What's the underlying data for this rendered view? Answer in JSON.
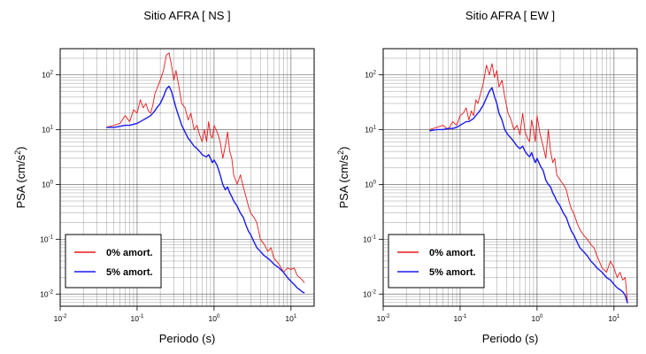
{
  "chart_data": [
    {
      "type": "line",
      "title": "Sitio AFRA [ NS ]",
      "xlabel": "Periodo (s)",
      "ylabel_base": "PSA (cm/s",
      "ylabel_exp": "2",
      "ylabel_close": ")",
      "x_scale": "log",
      "y_scale": "log",
      "xlim": [
        0.01,
        20
      ],
      "ylim": [
        0.006,
        300
      ],
      "x_ticks": [
        {
          "value": 0.01,
          "base": "10",
          "exp": "-2"
        },
        {
          "value": 0.1,
          "base": "10",
          "exp": "-1"
        },
        {
          "value": 1,
          "base": "10",
          "exp": "0"
        },
        {
          "value": 10,
          "base": "10",
          "exp": "1"
        }
      ],
      "y_ticks": [
        {
          "value": 0.01,
          "base": "10",
          "exp": "-2"
        },
        {
          "value": 0.1,
          "base": "10",
          "exp": "-1"
        },
        {
          "value": 1,
          "base": "10",
          "exp": "0"
        },
        {
          "value": 10,
          "base": "10",
          "exp": "1"
        },
        {
          "value": 100,
          "base": "10",
          "exp": "2"
        }
      ],
      "grid": true,
      "legend_position": "bottom-left",
      "series": [
        {
          "name": "0% amort.",
          "color": "#e8191a",
          "x": [
            0.04,
            0.05,
            0.06,
            0.07,
            0.08,
            0.09,
            0.1,
            0.11,
            0.12,
            0.13,
            0.14,
            0.15,
            0.16,
            0.17,
            0.18,
            0.2,
            0.22,
            0.24,
            0.26,
            0.28,
            0.3,
            0.32,
            0.35,
            0.38,
            0.42,
            0.46,
            0.5,
            0.55,
            0.6,
            0.65,
            0.7,
            0.75,
            0.8,
            0.85,
            0.9,
            0.95,
            1.0,
            1.1,
            1.2,
            1.3,
            1.4,
            1.5,
            1.6,
            1.7,
            1.8,
            2.0,
            2.2,
            2.4,
            2.6,
            2.8,
            3.0,
            3.3,
            3.6,
            4.0,
            4.5,
            5.0,
            5.5,
            6.0,
            7.0,
            8.0,
            9.0,
            10,
            11,
            12,
            13,
            14,
            15
          ],
          "y": [
            11,
            12,
            13,
            18,
            14,
            23,
            20,
            35,
            25,
            30,
            22,
            20,
            28,
            45,
            55,
            80,
            120,
            230,
            250,
            150,
            80,
            120,
            60,
            30,
            25,
            15,
            20,
            10,
            12,
            8,
            6,
            10,
            6,
            14,
            8,
            7,
            12,
            9,
            6,
            3,
            5,
            9,
            4,
            3,
            1.5,
            1.0,
            1.5,
            0.9,
            0.6,
            0.4,
            0.3,
            0.25,
            0.2,
            0.1,
            0.08,
            0.06,
            0.07,
            0.045,
            0.035,
            0.025,
            0.03,
            0.028,
            0.03,
            0.022,
            0.02,
            0.018,
            0.016
          ]
        },
        {
          "name": "5% amort.",
          "color": "#1a1af0",
          "x": [
            0.04,
            0.05,
            0.06,
            0.07,
            0.08,
            0.09,
            0.1,
            0.11,
            0.12,
            0.13,
            0.14,
            0.15,
            0.16,
            0.17,
            0.18,
            0.2,
            0.22,
            0.24,
            0.26,
            0.28,
            0.3,
            0.32,
            0.35,
            0.38,
            0.42,
            0.46,
            0.5,
            0.55,
            0.6,
            0.65,
            0.7,
            0.75,
            0.8,
            0.85,
            0.9,
            0.95,
            1.0,
            1.1,
            1.2,
            1.3,
            1.4,
            1.5,
            1.6,
            1.7,
            1.8,
            2.0,
            2.2,
            2.4,
            2.6,
            2.8,
            3.0,
            3.3,
            3.6,
            4.0,
            4.5,
            5.0,
            5.5,
            6.0,
            7.0,
            8.0,
            9.0,
            10,
            11,
            12,
            13,
            14,
            15
          ],
          "y": [
            11,
            11,
            11.5,
            12,
            12,
            12.5,
            13,
            14,
            15,
            16,
            17,
            18,
            20,
            22,
            25,
            30,
            40,
            55,
            62,
            50,
            35,
            25,
            17,
            12,
            9,
            7,
            6,
            5,
            4.5,
            4,
            3.5,
            3.3,
            3.2,
            3.5,
            3.0,
            2.5,
            2.8,
            2.2,
            1.5,
            1.0,
            0.8,
            0.9,
            0.7,
            0.6,
            0.5,
            0.4,
            0.3,
            0.25,
            0.18,
            0.14,
            0.12,
            0.09,
            0.07,
            0.06,
            0.05,
            0.045,
            0.04,
            0.035,
            0.03,
            0.025,
            0.02,
            0.017,
            0.015,
            0.013,
            0.012,
            0.011,
            0.0105
          ]
        }
      ]
    },
    {
      "type": "line",
      "title": "Sitio AFRA [ EW ]",
      "xlabel": "Periodo (s)",
      "ylabel_base": "PSA (cm/s",
      "ylabel_exp": "2",
      "ylabel_close": ")",
      "x_scale": "log",
      "y_scale": "log",
      "xlim": [
        0.01,
        20
      ],
      "ylim": [
        0.006,
        300
      ],
      "x_ticks": [
        {
          "value": 0.01,
          "base": "10",
          "exp": "-2"
        },
        {
          "value": 0.1,
          "base": "10",
          "exp": "-1"
        },
        {
          "value": 1,
          "base": "10",
          "exp": "0"
        },
        {
          "value": 10,
          "base": "10",
          "exp": "1"
        }
      ],
      "y_ticks": [
        {
          "value": 0.01,
          "base": "10",
          "exp": "-2"
        },
        {
          "value": 0.1,
          "base": "10",
          "exp": "-1"
        },
        {
          "value": 1,
          "base": "10",
          "exp": "0"
        },
        {
          "value": 10,
          "base": "10",
          "exp": "1"
        },
        {
          "value": 100,
          "base": "10",
          "exp": "2"
        }
      ],
      "grid": true,
      "legend_position": "bottom-left",
      "series": [
        {
          "name": "0% amort.",
          "color": "#e8191a",
          "x": [
            0.04,
            0.05,
            0.06,
            0.07,
            0.08,
            0.09,
            0.1,
            0.11,
            0.12,
            0.13,
            0.14,
            0.15,
            0.16,
            0.17,
            0.18,
            0.2,
            0.22,
            0.24,
            0.26,
            0.28,
            0.3,
            0.32,
            0.35,
            0.38,
            0.42,
            0.46,
            0.5,
            0.55,
            0.6,
            0.65,
            0.7,
            0.75,
            0.8,
            0.85,
            0.9,
            0.95,
            1.0,
            1.1,
            1.2,
            1.3,
            1.4,
            1.5,
            1.6,
            1.7,
            1.8,
            2.0,
            2.2,
            2.4,
            2.6,
            2.8,
            3.0,
            3.3,
            3.6,
            4.0,
            4.5,
            5.0,
            5.5,
            6.0,
            7.0,
            8.0,
            9.0,
            10,
            11,
            12,
            13,
            14,
            15
          ],
          "y": [
            10,
            11,
            12,
            10,
            14,
            12,
            18,
            20,
            25,
            15,
            22,
            18,
            35,
            30,
            40,
            70,
            150,
            100,
            160,
            90,
            120,
            60,
            80,
            40,
            20,
            15,
            10,
            12,
            8,
            20,
            9,
            7,
            6,
            15,
            10,
            6,
            18,
            8,
            5,
            3,
            10,
            4,
            2.5,
            3,
            1.5,
            1.2,
            1.0,
            0.8,
            0.5,
            0.35,
            0.3,
            0.2,
            0.15,
            0.12,
            0.1,
            0.08,
            0.07,
            0.05,
            0.03,
            0.025,
            0.04,
            0.03,
            0.02,
            0.025,
            0.018,
            0.02,
            0.007
          ]
        },
        {
          "name": "5% amort.",
          "color": "#1a1af0",
          "x": [
            0.04,
            0.05,
            0.06,
            0.07,
            0.08,
            0.09,
            0.1,
            0.11,
            0.12,
            0.13,
            0.14,
            0.15,
            0.16,
            0.17,
            0.18,
            0.2,
            0.22,
            0.24,
            0.26,
            0.28,
            0.3,
            0.32,
            0.35,
            0.38,
            0.42,
            0.46,
            0.5,
            0.55,
            0.6,
            0.65,
            0.7,
            0.75,
            0.8,
            0.85,
            0.9,
            0.95,
            1.0,
            1.1,
            1.2,
            1.3,
            1.4,
            1.5,
            1.6,
            1.7,
            1.8,
            2.0,
            2.2,
            2.4,
            2.6,
            2.8,
            3.0,
            3.3,
            3.6,
            4.0,
            4.5,
            5.0,
            5.5,
            6.0,
            7.0,
            8.0,
            9.0,
            10,
            11,
            12,
            13,
            14,
            15
          ],
          "y": [
            9.5,
            10,
            10,
            10.5,
            10.5,
            11,
            12,
            13,
            14,
            14,
            15,
            16,
            18,
            20,
            22,
            28,
            38,
            50,
            58,
            40,
            30,
            20,
            15,
            10,
            8,
            7,
            6,
            5,
            4.5,
            5,
            4,
            3.5,
            3.2,
            3.8,
            3,
            2.5,
            3,
            2.2,
            1.8,
            1.2,
            1.0,
            0.9,
            0.7,
            0.6,
            0.5,
            0.4,
            0.3,
            0.25,
            0.18,
            0.14,
            0.12,
            0.09,
            0.07,
            0.06,
            0.05,
            0.04,
            0.035,
            0.03,
            0.025,
            0.02,
            0.018,
            0.015,
            0.013,
            0.012,
            0.011,
            0.0095,
            0.0068
          ]
        }
      ]
    }
  ]
}
